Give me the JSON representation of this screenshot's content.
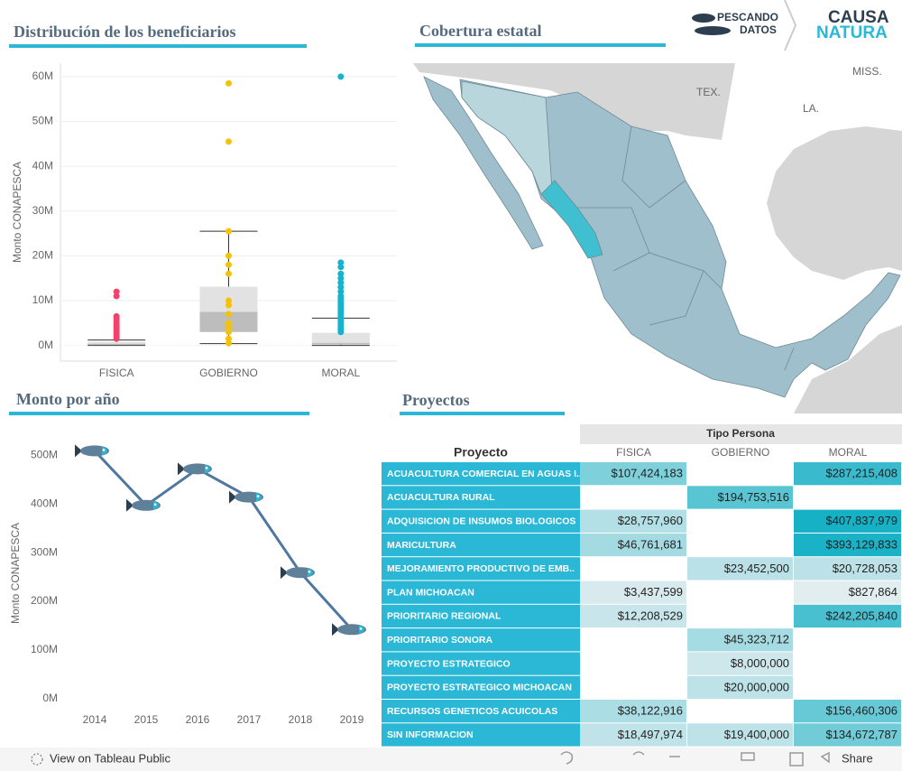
{
  "header": {
    "logo_left": [
      "PESCANDO",
      "DATOS"
    ],
    "logo_right": [
      "CAUSA",
      "NATURA"
    ]
  },
  "chart_data": [
    {
      "type": "box",
      "title": "Distribución de los beneficiarios",
      "y_label": "Monto CONAPESCA",
      "categories": [
        "FISICA",
        "GOBIERNO",
        "MORAL"
      ],
      "colors": [
        "#f0436e",
        "#f4c20d",
        "#17b2cf"
      ],
      "boxes": [
        {
          "min": 0,
          "q1": 100000,
          "median": 400000,
          "q3": 800000,
          "max": 1200000,
          "points": [
            12000000,
            11000000,
            6500000,
            6000000,
            5500000,
            5000000,
            4500000,
            4000000,
            3500000,
            3000000,
            2500000,
            2000000,
            1500000
          ]
        },
        {
          "min": 400000,
          "q1": 3000000,
          "median": 7500000,
          "q3": 13100000,
          "max": 25500000,
          "points": [
            58500000,
            45500000,
            25500000,
            20000000,
            18000000,
            16000000,
            10000000,
            9000000,
            7000000,
            5000000,
            4000000,
            3000000,
            1500000,
            500000
          ]
        },
        {
          "min": 0,
          "q1": 200000,
          "median": 600000,
          "q3": 2800000,
          "max": 6100000,
          "points": [
            60000000,
            18500000,
            17500000,
            16000000,
            15000000,
            14000000,
            13000000,
            12000000,
            11000000,
            10500000,
            10000000,
            9500000,
            9000000,
            8500000,
            8000000,
            7500000,
            7000000,
            6500000,
            6000000,
            5500000,
            5000000,
            4500000,
            4000000,
            3500000,
            3000000
          ]
        }
      ],
      "ylim": [
        -3500000,
        63000000
      ],
      "yticks": [
        {
          "value": 0,
          "label": "0M"
        },
        {
          "value": 10000000,
          "label": "10M"
        },
        {
          "value": 20000000,
          "label": "20M"
        },
        {
          "value": 30000000,
          "label": "30M"
        },
        {
          "value": 40000000,
          "label": "40M"
        },
        {
          "value": 50000000,
          "label": "50M"
        },
        {
          "value": 60000000,
          "label": "60M"
        }
      ],
      "grid": true
    },
    {
      "type": "line",
      "title": "Monto por año",
      "y_label": "Monto CONAPESCA",
      "categories": [
        "2014",
        "2015",
        "2016",
        "2017",
        "2018",
        "2019"
      ],
      "values": [
        509000000,
        397000000,
        472000000,
        414000000,
        259000000,
        142000000
      ],
      "color": "#4f77a0",
      "ylim": [
        -30000000,
        545000000
      ],
      "yticks": [
        {
          "value": 0,
          "label": "0M"
        },
        {
          "value": 100000000,
          "label": "100M"
        },
        {
          "value": 200000000,
          "label": "200M"
        },
        {
          "value": 300000000,
          "label": "300M"
        },
        {
          "value": 400000000,
          "label": "400M"
        },
        {
          "value": 500000000,
          "label": "500M"
        }
      ],
      "grid": false
    }
  ],
  "map": {
    "title": "Cobertura estatal",
    "labels": [
      "MISS.",
      "TEX.",
      "LA."
    ]
  },
  "table": {
    "title": "Proyectos",
    "group_header": "Tipo Persona",
    "row_header": "Proyecto",
    "columns": [
      "FISICA",
      "GOBIERNO",
      "MORAL"
    ],
    "rows": [
      [
        "ACUACULTURA COMERCIAL EN AGUAS I..",
        "$107,424,183",
        null,
        "$287,215,408"
      ],
      [
        "ACUACULTURA RURAL",
        null,
        "$194,753,516",
        null
      ],
      [
        "ADQUISICION DE INSUMOS BIOLOGICOS",
        "$28,757,960",
        null,
        "$407,837,979"
      ],
      [
        "MARICULTURA",
        "$46,761,681",
        null,
        "$393,129,833"
      ],
      [
        "MEJORAMIENTO PRODUCTIVO DE EMB..",
        null,
        "$23,452,500",
        "$20,728,053"
      ],
      [
        "PLAN MICHOACAN",
        "$3,437,599",
        null,
        "$827,864"
      ],
      [
        "PRIORITARIO REGIONAL",
        "$12,208,529",
        null,
        "$242,205,840"
      ],
      [
        "PRIORITARIO SONORA",
        null,
        "$45,323,712",
        null
      ],
      [
        "PROYECTO ESTRATEGICO",
        null,
        "$8,000,000",
        null
      ],
      [
        "PROYECTO ESTRATEGICO MICHOACAN",
        null,
        "$20,000,000",
        null
      ],
      [
        "RECURSOS GENETICOS ACUICOLAS",
        "$38,122,916",
        null,
        "$156,460,306"
      ],
      [
        "SIN INFORMACION",
        "$18,497,974",
        "$19,400,000",
        "$134,672,787"
      ]
    ]
  },
  "footer": {
    "link": "View on Tableau Public",
    "share": "Share"
  }
}
